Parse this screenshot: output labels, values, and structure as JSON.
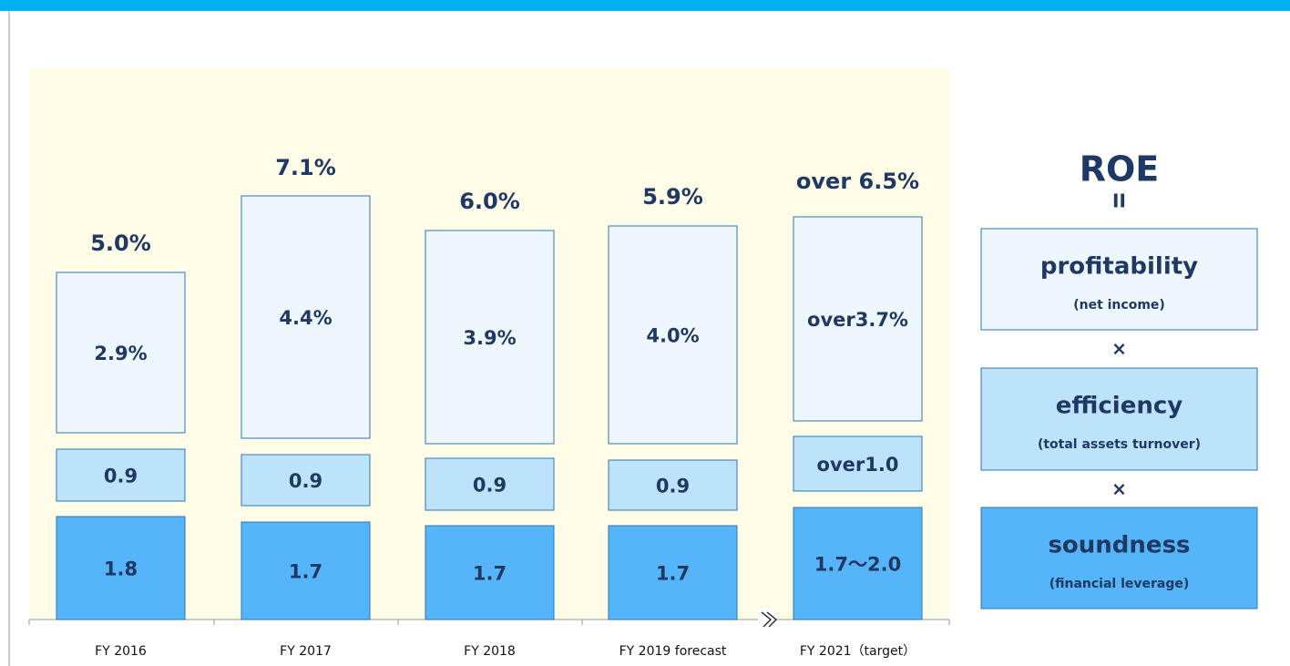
{
  "columns": [
    {
      "category": "FY 2016",
      "total": "5.0%",
      "profitability": "2.9%",
      "efficiency": "0.9",
      "soundness": "1.8"
    },
    {
      "category": "FY 2017",
      "total": "7.1%",
      "profitability": "4.4%",
      "efficiency": "0.9",
      "soundness": "1.7"
    },
    {
      "category": "FY 2018",
      "total": "6.0%",
      "profitability": "3.9%",
      "efficiency": "0.9",
      "soundness": "1.7"
    },
    {
      "category": "FY 2019 forecast",
      "total": "5.9%",
      "profitability": "4.0%",
      "efficiency": "0.9",
      "soundness": "1.7"
    },
    {
      "category": "FY 2021（target）",
      "total": "over 6.5%",
      "profitability": "over3.7%",
      "efficiency": "over1.0",
      "soundness": "1.7～2.0"
    }
  ],
  "legend": {
    "title": "ROE",
    "equals": "II",
    "operator": "×",
    "items": [
      {
        "name": "profitability",
        "note": "(net income)"
      },
      {
        "name": "efficiency",
        "note": "(total assets turnover)"
      },
      {
        "name": "soundness",
        "note": "(financial leverage)"
      }
    ]
  }
}
